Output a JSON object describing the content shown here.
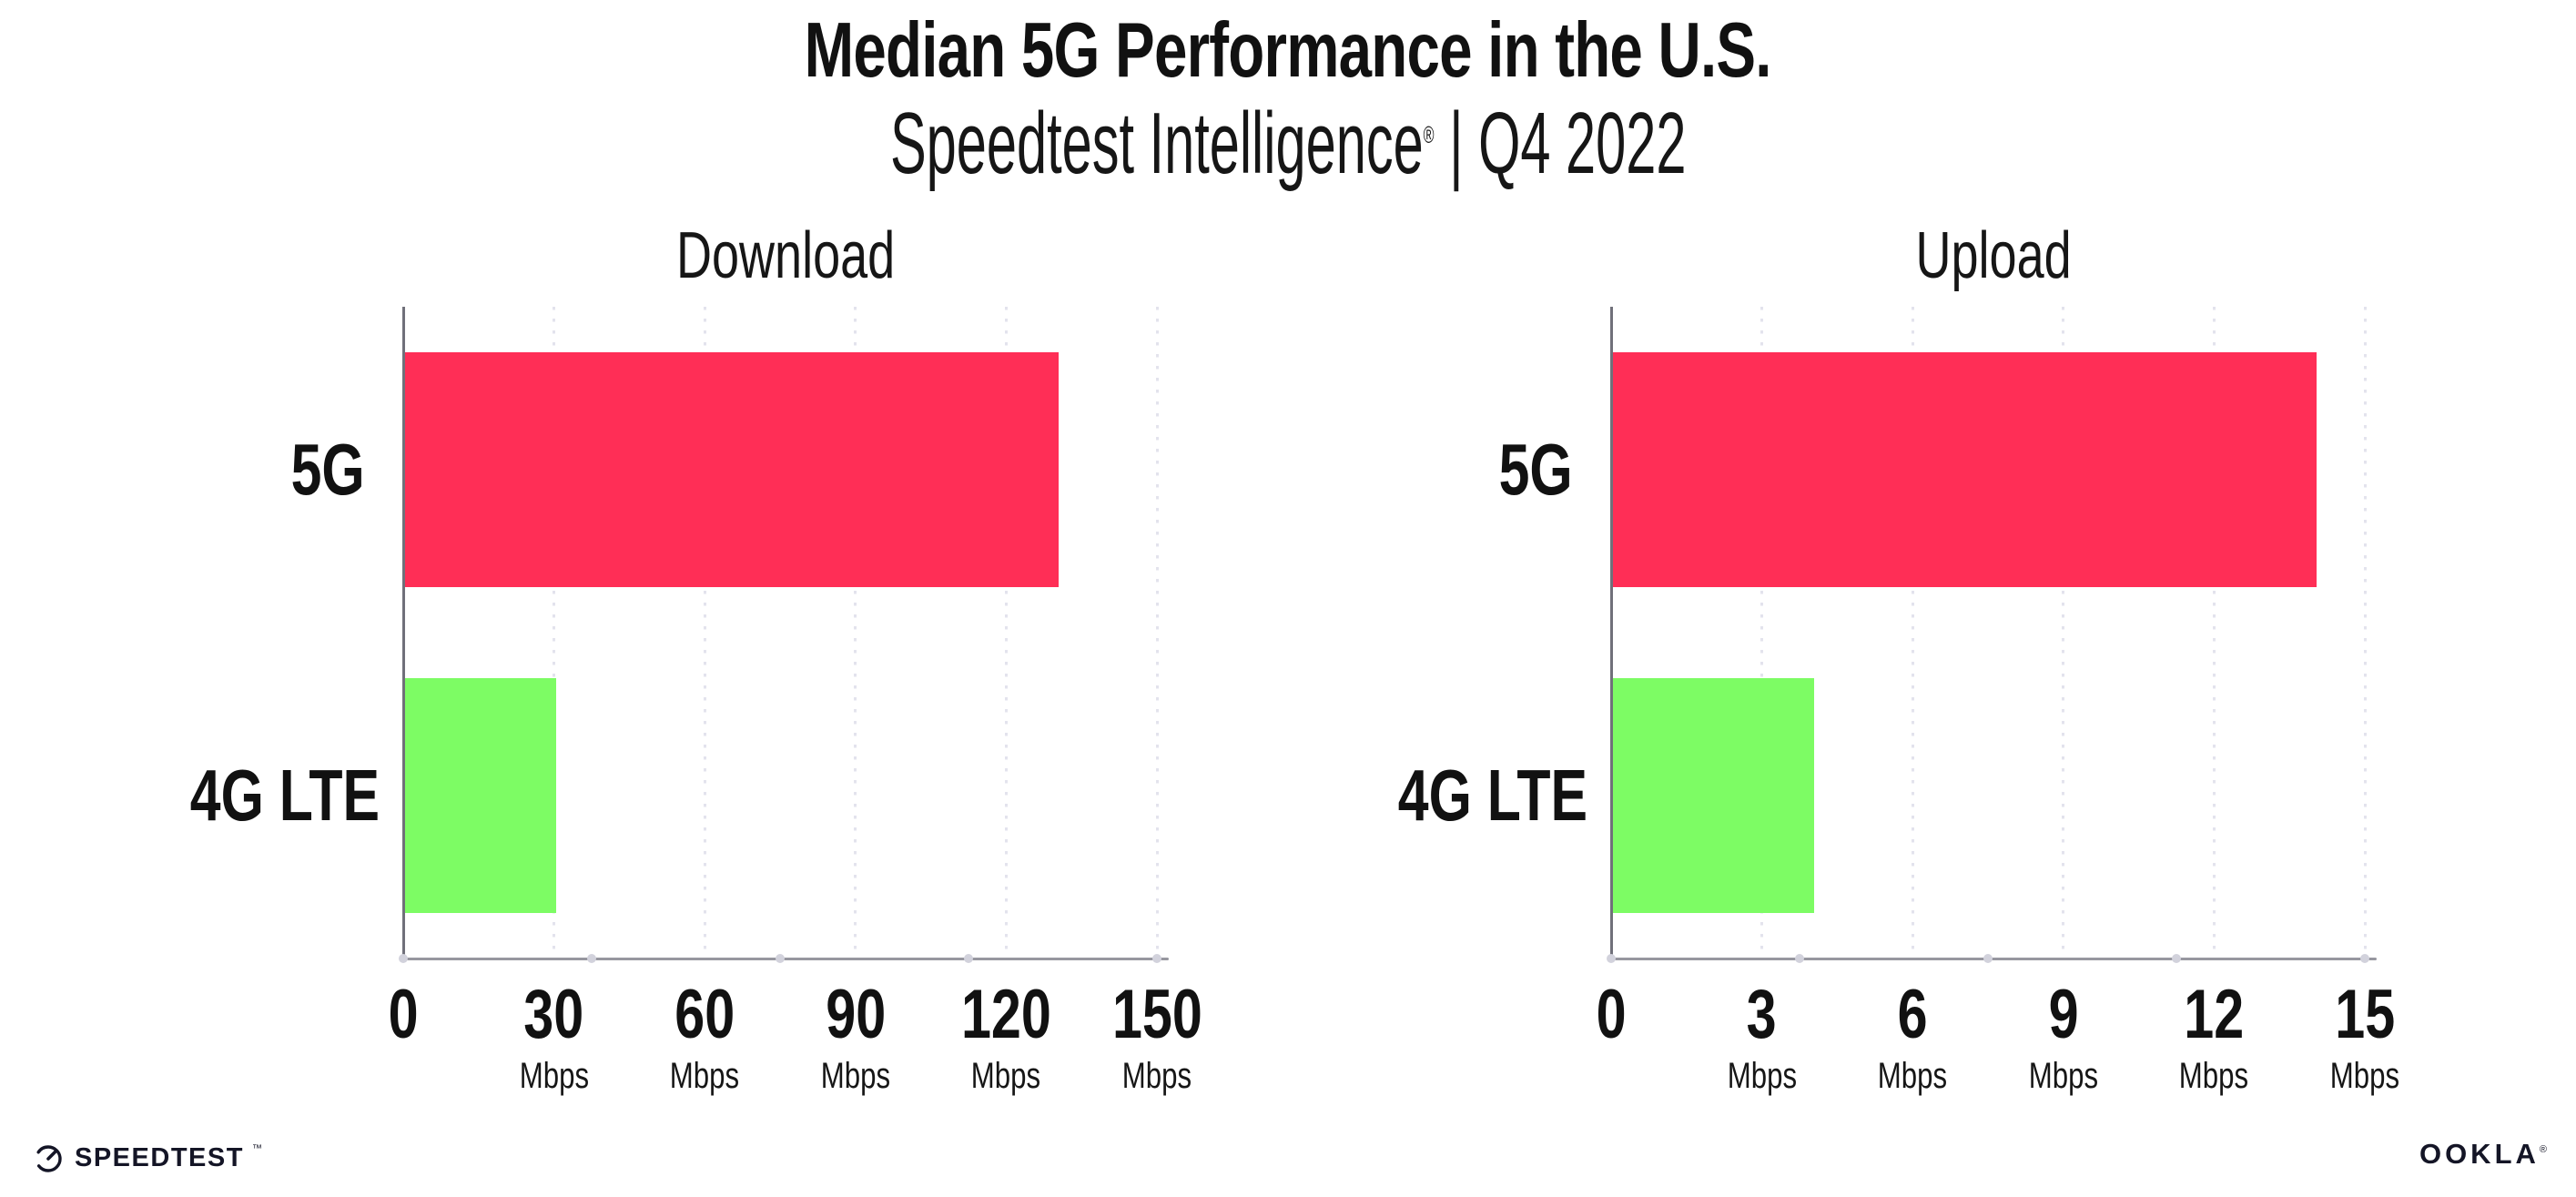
{
  "header": {
    "title": "Median 5G Performance in the U.S.",
    "subtitle_brand": "Speedtest Intelligence",
    "subtitle_reg_mark": "®",
    "subtitle_rest": " | Q4 2022"
  },
  "chart_data": [
    {
      "type": "bar",
      "orientation": "horizontal",
      "title": "Download",
      "categories": [
        "5G",
        "4G LTE"
      ],
      "values": [
        130,
        30
      ],
      "value_unit": "Mbps",
      "bar_colors": [
        "#ff2e56",
        "#7dfc64"
      ],
      "xlim": [
        0,
        150
      ],
      "xticks": [
        0,
        30,
        60,
        90,
        120,
        150
      ],
      "xtick_unit_label": "Mbps",
      "xtick_unit_on_zero": false,
      "grid": "vertical-dotted",
      "legend": "none",
      "axis_dot_fractions": [
        0,
        0.25,
        0.5,
        0.75,
        1
      ]
    },
    {
      "type": "bar",
      "orientation": "horizontal",
      "title": "Upload",
      "categories": [
        "5G",
        "4G LTE"
      ],
      "values": [
        14,
        4
      ],
      "value_unit": "Mbps",
      "bar_colors": [
        "#ff2e56",
        "#7dfc64"
      ],
      "xlim": [
        0,
        15
      ],
      "xticks": [
        0,
        3,
        6,
        9,
        12,
        15
      ],
      "xtick_unit_label": "Mbps",
      "xtick_unit_on_zero": false,
      "grid": "vertical-dotted",
      "legend": "none",
      "axis_dot_fractions": [
        0,
        0.25,
        0.5,
        0.75,
        1
      ]
    }
  ],
  "footer": {
    "speedtest_wordmark": "SPEEDTEST",
    "speedtest_tm": "™",
    "ookla_wordmark": "OOKLA",
    "ookla_reg": "®"
  },
  "colors": {
    "bar_5g": "#ff2e56",
    "bar_4g_lte": "#7dfc64",
    "gridline": "#e3e3ed",
    "x_axis": "#97979f",
    "y_axis": "#70707a",
    "axis_dot": "#d2d2dc",
    "text": "#111111",
    "background": "#ffffff"
  }
}
